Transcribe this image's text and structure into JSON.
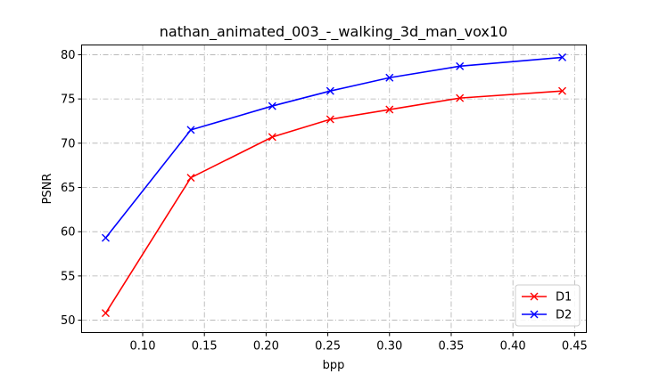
{
  "chart_data": {
    "type": "line",
    "title": "nathan_animated_003_-_walking_3d_man_vox10",
    "xlabel": "bpp",
    "ylabel": "PSNR",
    "xlim": [
      0.0505,
      0.4595
    ],
    "ylim": [
      48.6,
      81.1
    ],
    "xticks": [
      0.1,
      0.15,
      0.2,
      0.25,
      0.3,
      0.35,
      0.4,
      0.45
    ],
    "xtick_labels": [
      "0.10",
      "0.15",
      "0.20",
      "0.25",
      "0.30",
      "0.35",
      "0.40",
      "0.45"
    ],
    "yticks": [
      50,
      55,
      60,
      65,
      70,
      75,
      80
    ],
    "ytick_labels": [
      "50",
      "55",
      "60",
      "65",
      "70",
      "75",
      "80"
    ],
    "grid": true,
    "legend_position": "lower-right",
    "marker": "x",
    "series": [
      {
        "name": "D1",
        "color": "#ff0000",
        "x": [
          0.07,
          0.139,
          0.205,
          0.252,
          0.3,
          0.357,
          0.44
        ],
        "y": [
          50.8,
          66.1,
          70.7,
          72.7,
          73.8,
          75.1,
          75.9
        ]
      },
      {
        "name": "D2",
        "color": "#0000ff",
        "x": [
          0.07,
          0.139,
          0.205,
          0.252,
          0.3,
          0.357,
          0.44
        ],
        "y": [
          59.3,
          71.5,
          74.2,
          75.9,
          77.4,
          78.7,
          79.7
        ]
      }
    ]
  }
}
